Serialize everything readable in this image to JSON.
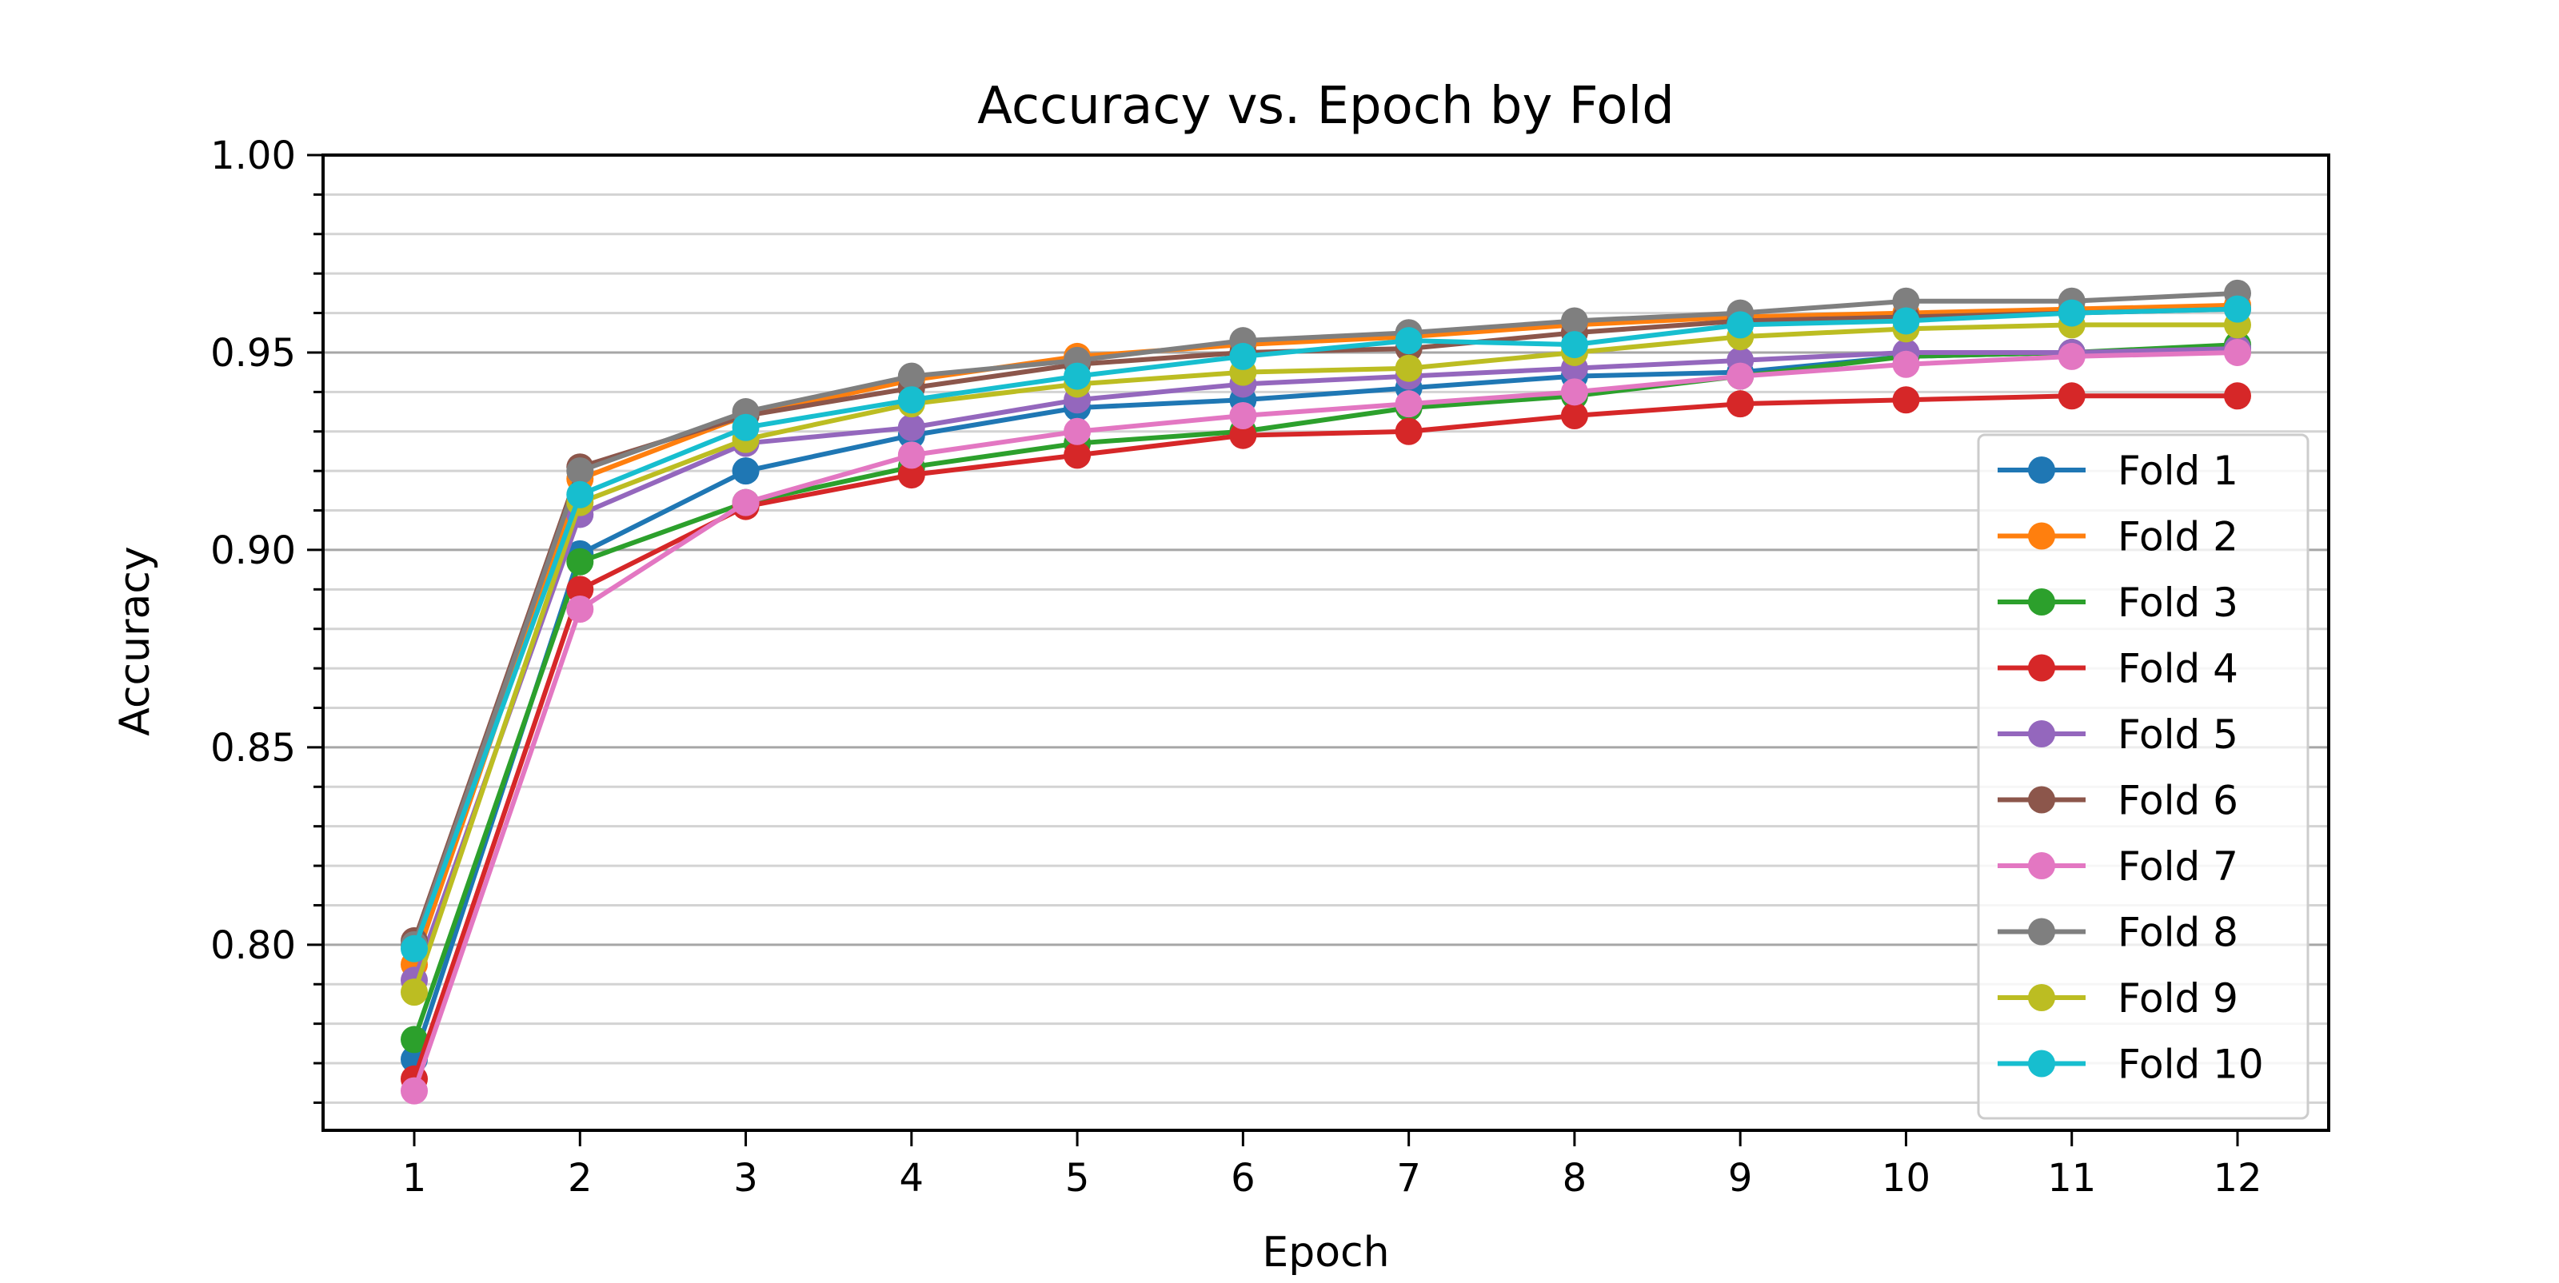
{
  "chart_data": {
    "type": "line",
    "title": "Accuracy vs. Epoch by Fold",
    "xlabel": "Epoch",
    "ylabel": "Accuracy",
    "x": [
      1,
      2,
      3,
      4,
      5,
      6,
      7,
      8,
      9,
      10,
      11,
      12
    ],
    "xlim": [
      0.45,
      12.55
    ],
    "ylim": [
      0.753,
      1.0
    ],
    "y_major_ticks": [
      0.8,
      0.85,
      0.9,
      0.95,
      1.0
    ],
    "y_tick_labels": [
      "0.80",
      "0.85",
      "0.90",
      "0.95",
      "1.00"
    ],
    "x_tick_labels": [
      "1",
      "2",
      "3",
      "4",
      "5",
      "6",
      "7",
      "8",
      "9",
      "10",
      "11",
      "12"
    ],
    "y_minor_step": 0.01,
    "grid": true,
    "legend_position": "right",
    "series": [
      {
        "name": "Fold 1",
        "color": "#1f77b4",
        "values": [
          0.771,
          0.899,
          0.92,
          0.929,
          0.936,
          0.938,
          0.941,
          0.944,
          0.945,
          0.949,
          0.95,
          0.951
        ]
      },
      {
        "name": "Fold 2",
        "color": "#ff7f0e",
        "values": [
          0.795,
          0.918,
          0.934,
          0.943,
          0.949,
          0.952,
          0.954,
          0.957,
          0.959,
          0.96,
          0.961,
          0.962
        ]
      },
      {
        "name": "Fold 3",
        "color": "#2ca02c",
        "values": [
          0.776,
          0.897,
          0.912,
          0.921,
          0.927,
          0.93,
          0.936,
          0.939,
          0.944,
          0.949,
          0.95,
          0.952
        ]
      },
      {
        "name": "Fold 4",
        "color": "#d62728",
        "values": [
          0.766,
          0.89,
          0.911,
          0.919,
          0.924,
          0.929,
          0.93,
          0.934,
          0.937,
          0.938,
          0.939,
          0.939
        ]
      },
      {
        "name": "Fold 5",
        "color": "#9467bd",
        "values": [
          0.791,
          0.909,
          0.927,
          0.931,
          0.938,
          0.942,
          0.944,
          0.946,
          0.948,
          0.95,
          0.95,
          0.951
        ]
      },
      {
        "name": "Fold 6",
        "color": "#8c564b",
        "values": [
          0.801,
          0.921,
          0.934,
          0.941,
          0.947,
          0.95,
          0.951,
          0.955,
          0.958,
          0.959,
          0.96,
          0.961
        ]
      },
      {
        "name": "Fold 7",
        "color": "#e377c2",
        "values": [
          0.763,
          0.885,
          0.912,
          0.924,
          0.93,
          0.934,
          0.937,
          0.94,
          0.944,
          0.947,
          0.949,
          0.95
        ]
      },
      {
        "name": "Fold 8",
        "color": "#7f7f7f",
        "values": [
          0.8,
          0.92,
          0.935,
          0.944,
          0.948,
          0.953,
          0.955,
          0.958,
          0.96,
          0.963,
          0.963,
          0.965
        ]
      },
      {
        "name": "Fold 9",
        "color": "#bcbd22",
        "values": [
          0.788,
          0.912,
          0.928,
          0.937,
          0.942,
          0.945,
          0.946,
          0.95,
          0.954,
          0.956,
          0.957,
          0.957
        ]
      },
      {
        "name": "Fold 10",
        "color": "#17becf",
        "values": [
          0.799,
          0.914,
          0.931,
          0.938,
          0.944,
          0.949,
          0.953,
          0.952,
          0.957,
          0.958,
          0.96,
          0.961
        ]
      }
    ]
  }
}
